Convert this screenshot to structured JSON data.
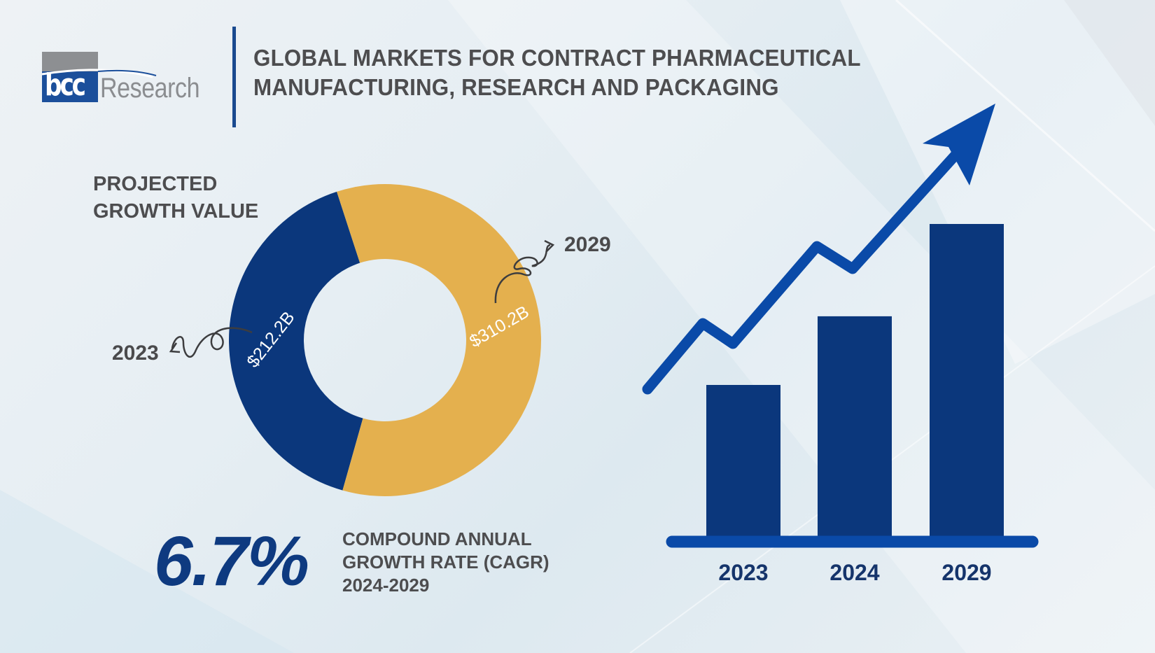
{
  "brand": {
    "logo_text_bcc": "bcc",
    "logo_text_research": "Research",
    "colors": {
      "logo_blue": "#1b4f9b",
      "logo_grey": "#8d8f92"
    }
  },
  "header": {
    "title_line1": "GLOBAL MARKETS FOR CONTRACT PHARMACEUTICAL",
    "title_line2": "MANUFACTURING, RESEARCH AND PACKAGING"
  },
  "donut_section": {
    "heading_line1": "PROJECTED",
    "heading_line2": "GROWTH VALUE",
    "callout_2023": "2023",
    "callout_2029": "2029"
  },
  "cagr": {
    "value": "6.7%",
    "label_line1": "COMPOUND ANNUAL",
    "label_line2": "GROWTH RATE (CAGR)",
    "label_line3": "2024-2029"
  },
  "chart_data": [
    {
      "type": "pie",
      "variant": "donut",
      "title": "PROJECTED GROWTH VALUE",
      "slices": [
        {
          "name": "2023",
          "value": 212.2,
          "label": "$212.2B",
          "color": "#0b377c"
        },
        {
          "name": "2029",
          "value": 310.2,
          "label": "$310.2B",
          "color": "#e4b04e"
        }
      ],
      "units": "USD billions"
    },
    {
      "type": "bar",
      "title": "",
      "categories": [
        "2023",
        "2024",
        "2029"
      ],
      "values": [
        212.2,
        254.0,
        310.2
      ],
      "values_note": "bar heights are illustrative; 2024 value not printed",
      "xlabel": "",
      "ylabel": "",
      "ylim": [
        0,
        500
      ],
      "grid": false,
      "bar_color": "#0b377c",
      "axis_color": "#0a4aa8",
      "trend_arrow": {
        "direction": "up",
        "color": "#0a4aa8"
      }
    }
  ]
}
